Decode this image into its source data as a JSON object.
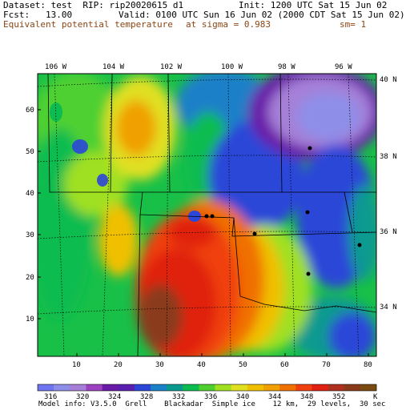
{
  "header": {
    "dataset_line": "Dataset: test  RIP: rip20020615 d1",
    "init_line": "Init: 1200 UTC Sat 15 Jun 02",
    "fcst_line": "Fcst:   13.00",
    "valid_line": "Valid: 0100 UTC Sun 16 Jun 02 (2000 CDT Sat 15 Jun 02)",
    "field_label": "Equivalent potential temperature",
    "sigma_label": "at sigma = 0.983",
    "sm_label": "sm= 1"
  },
  "map": {
    "lon_labels": [
      "106 W",
      "104 W",
      "102 W",
      "100 W",
      "98 W",
      "96 W"
    ],
    "lat_labels": [
      "40 N",
      "38 N",
      "36 N",
      "34 N"
    ],
    "y_ticks": [
      "60",
      "50",
      "40",
      "30",
      "20",
      "10"
    ],
    "x_ticks": [
      "10",
      "20",
      "30",
      "40",
      "50",
      "60",
      "70",
      "80"
    ]
  },
  "legend": {
    "values": [
      "316",
      "320",
      "324",
      "328",
      "332",
      "336",
      "340",
      "344",
      "348",
      "352"
    ],
    "unit": "K",
    "colors": [
      "#6f74f0",
      "#8e8ee8",
      "#a680d8",
      "#9c42c0",
      "#6a1aa8",
      "#5a1fb0",
      "#2c46d8",
      "#1a80c8",
      "#0a9a90",
      "#0cbc50",
      "#50d030",
      "#a0e020",
      "#e0e020",
      "#f0c000",
      "#f0a000",
      "#f07000",
      "#f04010",
      "#e02010",
      "#b03020",
      "#8a3a1a",
      "#7a4a10"
    ]
  },
  "footer": "Model info: V3.5.0  Grell    Blackadar  Simple ice    12 km,  29 levels,  30 sec",
  "colors": {
    "field_label": "#8b4513"
  }
}
